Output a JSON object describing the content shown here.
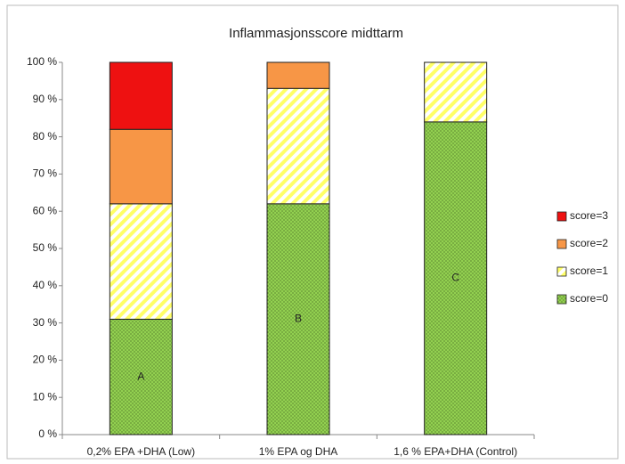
{
  "chart_data": {
    "type": "bar",
    "stacked": true,
    "title": "Inflammasjonsscore midttarm",
    "categories": [
      "0,2% EPA +DHA (Low)",
      "1% EPA og DHA",
      "1,6 % EPA+DHA (Control)"
    ],
    "series": [
      {
        "name": "score=0",
        "color": "#92d050",
        "pattern": "dots",
        "values": [
          31,
          62,
          84
        ]
      },
      {
        "name": "score=1",
        "color": "#ffff66",
        "pattern": "hatch",
        "values": [
          31,
          31,
          16
        ]
      },
      {
        "name": "score=2",
        "color": "#f79646",
        "values": [
          20,
          7,
          0
        ]
      },
      {
        "name": "score=3",
        "color": "#ee1111",
        "values": [
          18,
          0,
          0
        ]
      }
    ],
    "annotations": [
      "A",
      "B",
      "C"
    ],
    "ylim": [
      0,
      100
    ],
    "yticks": [
      {
        "value": 0,
        "label": "0 %"
      },
      {
        "value": 10,
        "label": "10 %"
      },
      {
        "value": 20,
        "label": "20 %"
      },
      {
        "value": 30,
        "label": "30 %"
      },
      {
        "value": 40,
        "label": "40 %"
      },
      {
        "value": 50,
        "label": "50 %"
      },
      {
        "value": 60,
        "label": "60 %"
      },
      {
        "value": 70,
        "label": "70 %"
      },
      {
        "value": 80,
        "label": "80 %"
      },
      {
        "value": 90,
        "label": "90 %"
      },
      {
        "value": 100,
        "label": "100 %"
      }
    ],
    "grid": false,
    "legend": "right"
  }
}
